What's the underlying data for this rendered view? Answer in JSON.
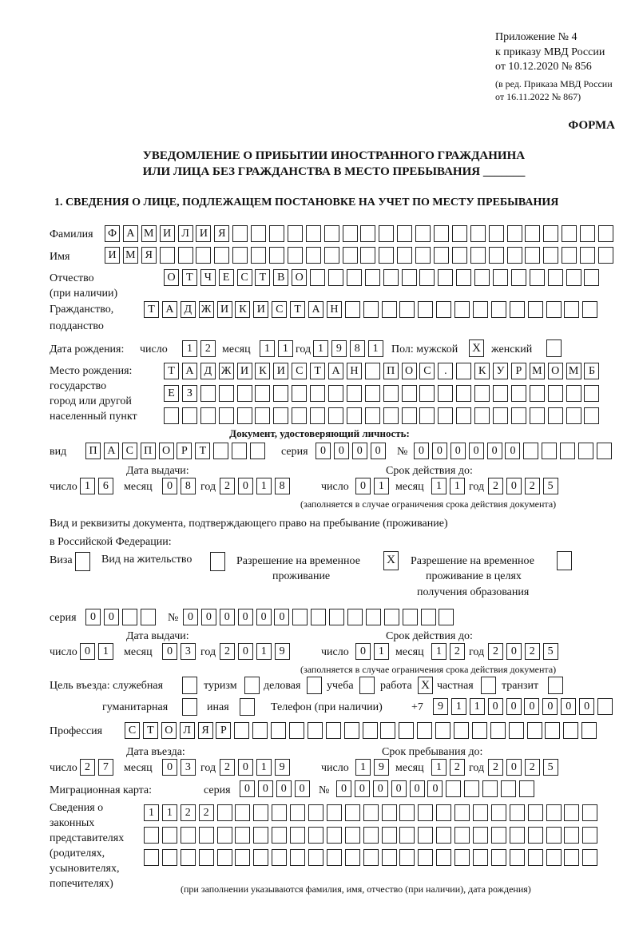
{
  "header": {
    "appendix": "Приложение № 4",
    "order": "к приказу МВД России",
    "order_date": "от 10.12.2020 № 856",
    "edition": "(в ред. Приказа МВД России",
    "edition_date": "от 16.11.2022 № 867)",
    "form_label": "ФОРМА",
    "title_line1": "УВЕДОМЛЕНИЕ О ПРИБЫТИИ ИНОСТРАННОГО ГРАЖДАНИНА",
    "title_line2": "ИЛИ ЛИЦА БЕЗ ГРАЖДАНСТВА В МЕСТО ПРЕБЫВАНИЯ _______",
    "section1": "1. СВЕДЕНИЯ О ЛИЦЕ, ПОДЛЕЖАЩЕМ ПОСТАНОВКЕ НА УЧЕТ ПО МЕСТУ ПРЕБЫВАНИЯ"
  },
  "labels": {
    "surname": "Фамилия",
    "name": "Имя",
    "patronymic": "Отчество",
    "patronymic_note": "(при наличии)",
    "citizenship1": "Гражданство,",
    "citizenship2": "подданство",
    "birth_date": "Дата рождения:",
    "day": "число",
    "month": "месяц",
    "year": "год",
    "sex_male": "Пол: мужской",
    "sex_female": "женский",
    "birthplace1": "Место рождения:",
    "birthplace2": "государство",
    "birthplace3": "город или другой",
    "birthplace4": "населенный пункт",
    "id_doc": "Документ, удостоверяющий личность:",
    "kind": "вид",
    "series": "серия",
    "number": "№",
    "issue_date": "Дата выдачи:",
    "valid_until": "Срок действия до:",
    "validity_note": "(заполняется в случае ограничения срока действия документа)",
    "stay_doc1": "Вид и реквизиты документа, подтверждающего право на пребывание (проживание)",
    "stay_doc2": "в Российской Федерации:",
    "visa": "Виза",
    "residence": "Вид на жительство",
    "trp1": "Разрешение на временное",
    "trp2": "проживание",
    "trp_edu1": "Разрешение на временное",
    "trp_edu2": "проживание в целях",
    "trp_edu3": "получения образования",
    "purpose": "Цель въезда: служебная",
    "tourism": "туризм",
    "business": "деловая",
    "study": "учеба",
    "work": "работа",
    "private": "частная",
    "transit": "транзит",
    "humanitarian": "гуманитарная",
    "other": "иная",
    "phone": "Телефон (при наличии)",
    "phone_prefix": "+7",
    "profession": "Профессия",
    "entry_date": "Дата въезда:",
    "stay_until": "Срок пребывания до:",
    "migration_card": "Миграционная карта:",
    "reps1": "Сведения о",
    "reps2": "законных",
    "reps3": "представителях",
    "reps4": "(родителях,",
    "reps5": "усыновителях,",
    "reps6": "попечителях)",
    "reps_note": "(при заполнении указываются фамилия, имя, отчество (при наличии), дата рождения)"
  },
  "person": {
    "surname": "ФАМИЛИЯ",
    "name": "ИМЯ",
    "patronymic": "ОТЧЕСТВО",
    "citizenship": "ТАДЖИКИСТАН",
    "birth": {
      "day": "12",
      "month": "11",
      "year": "1981"
    },
    "sex_male": "X",
    "sex_female": "",
    "birthplace_line1": "ТАДЖИКИСТАН ПОС. КУРМОМБ",
    "birthplace_line2": "ЕЗ",
    "birthplace_line3": ""
  },
  "id_document": {
    "kind": "ПАСПОРТ",
    "series": "0000",
    "number": "000000",
    "issued": {
      "day": "16",
      "month": "08",
      "year": "2018"
    },
    "valid": {
      "day": "01",
      "month": "11",
      "year": "2025"
    }
  },
  "stay_document": {
    "visa": "",
    "residence_permit": "",
    "temporary_residence": "X",
    "temporary_residence_education": "",
    "series": "00",
    "number": "000000",
    "issued": {
      "day": "01",
      "month": "03",
      "year": "2019"
    },
    "valid": {
      "day": "01",
      "month": "12",
      "year": "2025"
    }
  },
  "purpose": {
    "official": "",
    "tourism": "",
    "business": "",
    "study": "",
    "work": "X",
    "private": "",
    "transit": "",
    "humanitarian": "",
    "other": ""
  },
  "phone": "911000000",
  "profession": "СТОЛЯР",
  "entry": {
    "date": {
      "day": "27",
      "month": "03",
      "year": "2019"
    },
    "until": {
      "day": "19",
      "month": "12",
      "year": "2025"
    }
  },
  "migration_card": {
    "series": "0000",
    "number": "000000"
  },
  "representatives": {
    "line1": "1122",
    "line2": "",
    "line3": ""
  }
}
